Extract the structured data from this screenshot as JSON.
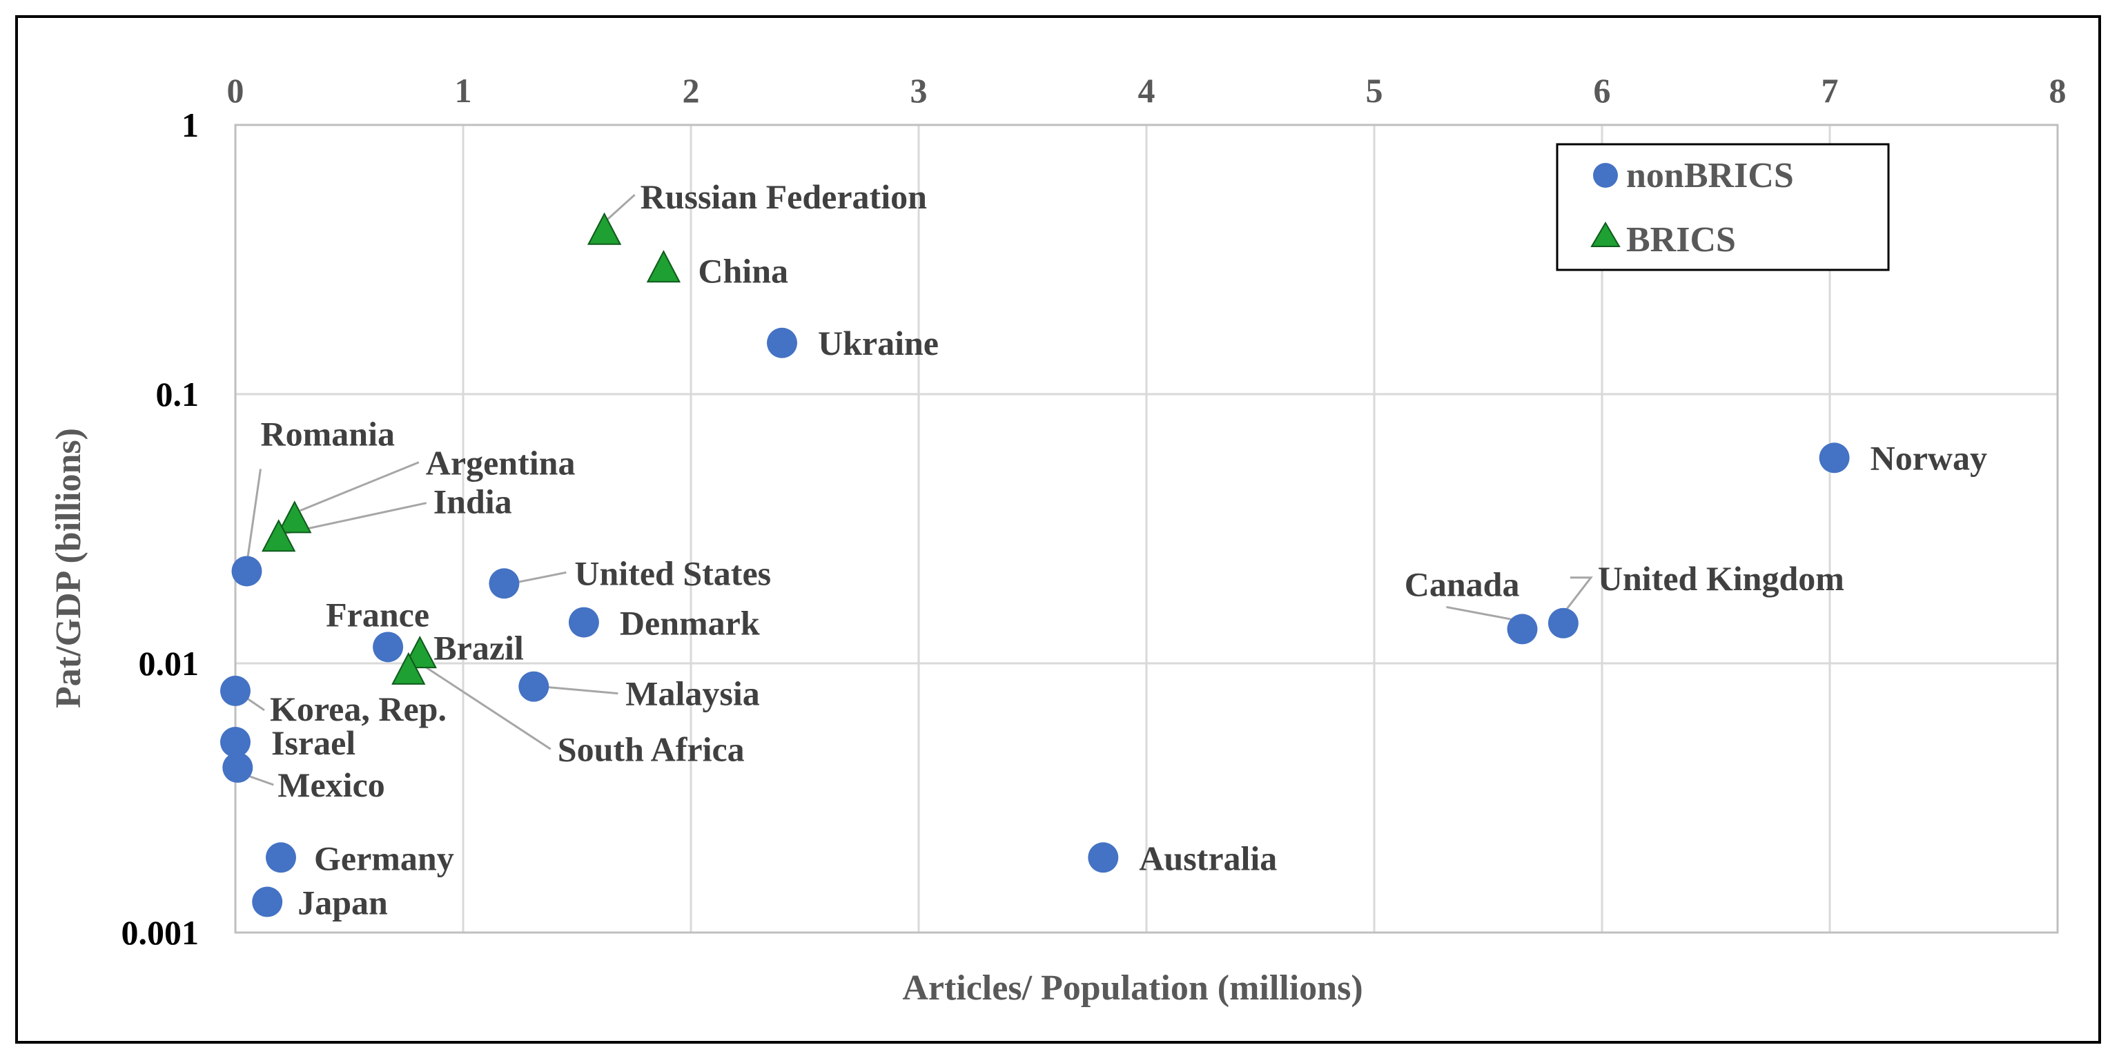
{
  "chart_data": {
    "type": "scatter",
    "title": "",
    "xlabel": "Articles/ Population (millions)",
    "ylabel": "Pat/GDP (billions)",
    "xlim": [
      0,
      8
    ],
    "ylim": [
      0.001,
      1
    ],
    "yscale": "log",
    "x_axis_position": "top",
    "x_ticks": [
      0,
      1,
      2,
      3,
      4,
      5,
      6,
      7,
      8
    ],
    "y_ticks": [
      0.001,
      0.01,
      0.1,
      1
    ],
    "y_tick_labels": [
      "0.001",
      "0.01",
      "0.1",
      "1"
    ],
    "grid": true,
    "legend_position": "top-right",
    "series": [
      {
        "name": "nonBRICS",
        "marker": "circle",
        "color": "#4472C4",
        "points": [
          {
            "label": "Ukraine",
            "x": 2.4,
            "y": 0.155
          },
          {
            "label": "Norway",
            "x": 7.02,
            "y": 0.058
          },
          {
            "label": "Romania",
            "x": 0.05,
            "y": 0.022
          },
          {
            "label": "United States",
            "x": 1.18,
            "y": 0.0198
          },
          {
            "label": "Denmark",
            "x": 1.53,
            "y": 0.0142
          },
          {
            "label": "France",
            "x": 0.67,
            "y": 0.0115
          },
          {
            "label": "Malaysia",
            "x": 1.31,
            "y": 0.0082
          },
          {
            "label": "Korea, Rep.",
            "x": 0.0,
            "y": 0.0079
          },
          {
            "label": "Israel",
            "x": 0.0,
            "y": 0.0051
          },
          {
            "label": "Mexico",
            "x": 0.01,
            "y": 0.0041
          },
          {
            "label": "Germany",
            "x": 0.2,
            "y": 0.0019
          },
          {
            "label": "Japan",
            "x": 0.14,
            "y": 0.0013
          },
          {
            "label": "Australia",
            "x": 3.81,
            "y": 0.0019
          },
          {
            "label": "Canada",
            "x": 5.65,
            "y": 0.0134
          },
          {
            "label": "United Kingdom",
            "x": 5.83,
            "y": 0.0141
          }
        ]
      },
      {
        "name": "BRICS",
        "marker": "triangle",
        "color": "#1FA032",
        "points": [
          {
            "label": "Russian Federation",
            "x": 1.62,
            "y": 0.4
          },
          {
            "label": "China",
            "x": 1.88,
            "y": 0.29
          },
          {
            "label": "Argentina",
            "x": 0.26,
            "y": 0.034
          },
          {
            "label": "India",
            "x": 0.19,
            "y": 0.029
          },
          {
            "label": "Brazil",
            "x": 0.81,
            "y": 0.0107
          },
          {
            "label": "South Africa",
            "x": 0.76,
            "y": 0.0093
          }
        ]
      }
    ]
  }
}
